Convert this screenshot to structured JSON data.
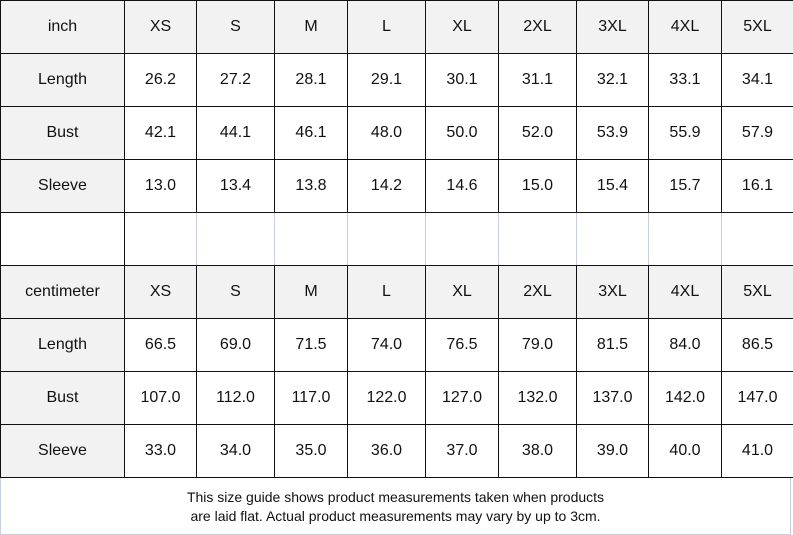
{
  "tables": [
    {
      "unit": "inch",
      "sizes": [
        "XS",
        "S",
        "M",
        "L",
        "XL",
        "2XL",
        "3XL",
        "4XL",
        "5XL"
      ],
      "rows": [
        {
          "label": "Length",
          "values": [
            "26.2",
            "27.2",
            "28.1",
            "29.1",
            "30.1",
            "31.1",
            "32.1",
            "33.1",
            "34.1"
          ]
        },
        {
          "label": "Bust",
          "values": [
            "42.1",
            "44.1",
            "46.1",
            "48.0",
            "50.0",
            "52.0",
            "53.9",
            "55.9",
            "57.9"
          ]
        },
        {
          "label": "Sleeve",
          "values": [
            "13.0",
            "13.4",
            "13.8",
            "14.2",
            "14.6",
            "15.0",
            "15.4",
            "15.7",
            "16.1"
          ]
        }
      ]
    },
    {
      "unit": "centimeter",
      "sizes": [
        "XS",
        "S",
        "M",
        "L",
        "XL",
        "2XL",
        "3XL",
        "4XL",
        "5XL"
      ],
      "rows": [
        {
          "label": "Length",
          "values": [
            "66.5",
            "69.0",
            "71.5",
            "74.0",
            "76.5",
            "79.0",
            "81.5",
            "84.0",
            "86.5"
          ]
        },
        {
          "label": "Bust",
          "values": [
            "107.0",
            "112.0",
            "117.0",
            "122.0",
            "127.0",
            "132.0",
            "137.0",
            "142.0",
            "147.0"
          ]
        },
        {
          "label": "Sleeve",
          "values": [
            "33.0",
            "34.0",
            "35.0",
            "36.0",
            "37.0",
            "38.0",
            "39.0",
            "40.0",
            "41.0"
          ]
        }
      ]
    }
  ],
  "footer": {
    "line1": "This size guide shows product measurements taken when products",
    "line2": "are laid flat. Actual product measurements may vary by up to 3cm."
  },
  "colors": {
    "header_bg": "#f2f2f2",
    "border": "#111111"
  }
}
